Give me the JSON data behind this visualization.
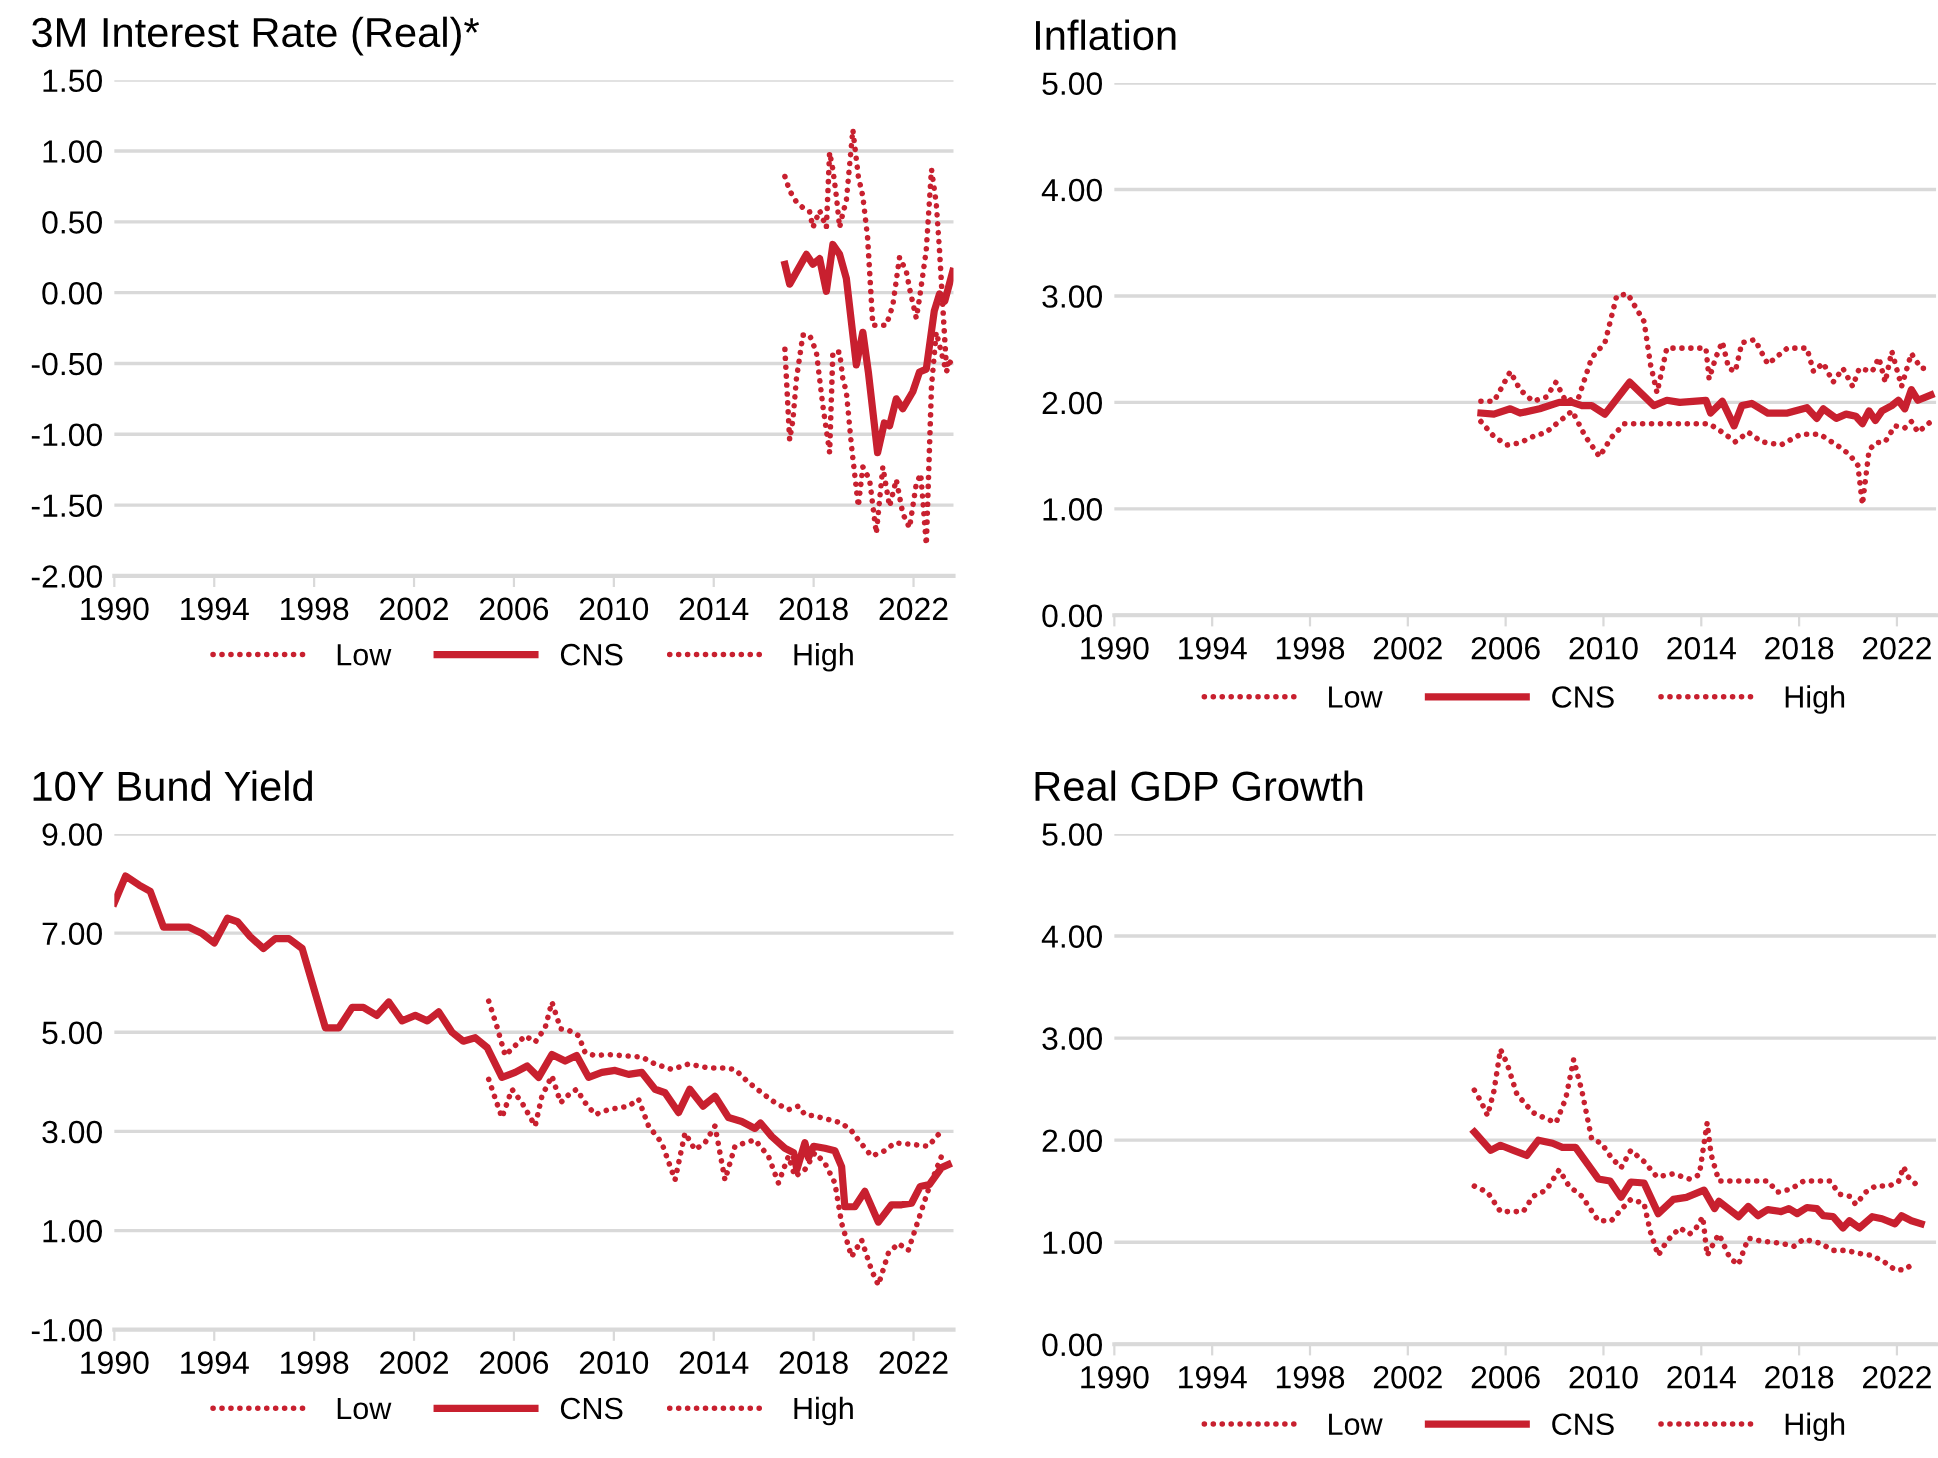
{
  "chart_data": [
    {
      "type": "line",
      "title": "3M Interest Rate (Real)*",
      "xlim": [
        1990,
        2023.6
      ],
      "xticks": [
        1990,
        1994,
        1998,
        2002,
        2006,
        2010,
        2014,
        2018,
        2022
      ],
      "ylim": [
        -2,
        1.5
      ],
      "yticks": [
        {
          "value": -2,
          "label": "-2.00"
        },
        {
          "value": -1.5,
          "label": "-1.50"
        },
        {
          "value": -1,
          "label": "-1.00"
        },
        {
          "value": -0.5,
          "label": "-0.50"
        },
        {
          "value": 0,
          "label": "0.00"
        },
        {
          "value": 0.5,
          "label": "0.50"
        },
        {
          "value": 1,
          "label": "1.00"
        },
        {
          "value": 1.5,
          "label": "1.50"
        }
      ],
      "grid": "y",
      "legend": "bottom",
      "marker": "none",
      "series": [
        {
          "name": "Low",
          "color": "#c8202f",
          "line_style": "dotted",
          "x": [
            2016.85,
            2017.04,
            2017.17,
            2017.31,
            2017.57,
            2017.84,
            2018.11,
            2018.37,
            2018.64,
            2018.77,
            2019.04,
            2019.17,
            2019.31,
            2019.52,
            2019.79,
            2019.97,
            2020.24,
            2020.51,
            2020.77,
            2021.04,
            2021.31,
            2021.57,
            2021.84,
            2022.11,
            2022.29,
            2022.51,
            2022.72,
            2022.91,
            2023.04,
            2023.31,
            2023.52
          ],
          "values": [
            -0.4,
            -1.04,
            -0.9,
            -0.61,
            -0.3,
            -0.3,
            -0.42,
            -0.8,
            -1.13,
            -0.42,
            -0.42,
            -0.61,
            -0.7,
            -1.09,
            -1.51,
            -1.23,
            -1.32,
            -1.7,
            -1.23,
            -1.51,
            -1.32,
            -1.56,
            -1.66,
            -1.35,
            -1.28,
            -1.78,
            -0.66,
            -0.28,
            -0.37,
            -0.56,
            -0.47
          ]
        },
        {
          "name": "CNS",
          "color": "#c8202f",
          "line_style": "solid",
          "x": [
            2016.85,
            2017.04,
            2017.71,
            2017.97,
            2018.24,
            2018.51,
            2018.77,
            2019.04,
            2019.31,
            2019.71,
            2019.97,
            2020.19,
            2020.56,
            2020.83,
            2021.04,
            2021.31,
            2021.57,
            2021.97,
            2022.24,
            2022.51,
            2022.83,
            2023.04,
            2023.25,
            2023.57
          ],
          "values": [
            0.2,
            0.06,
            0.27,
            0.2,
            0.24,
            0.01,
            0.34,
            0.27,
            0.1,
            -0.51,
            -0.28,
            -0.56,
            -1.13,
            -0.92,
            -0.94,
            -0.75,
            -0.82,
            -0.7,
            -0.56,
            -0.54,
            -0.13,
            -0.01,
            -0.06,
            0.15
          ]
        },
        {
          "name": "High",
          "color": "#c8202f",
          "line_style": "dotted",
          "x": [
            2016.85,
            2017.04,
            2017.31,
            2017.57,
            2017.84,
            2017.97,
            2018.24,
            2018.51,
            2018.64,
            2018.77,
            2018.91,
            2019.04,
            2019.17,
            2019.31,
            2019.57,
            2019.79,
            2019.97,
            2020.16,
            2020.37,
            2020.64,
            2020.91,
            2021.17,
            2021.44,
            2021.71,
            2021.84,
            2022.11,
            2022.24,
            2022.51,
            2022.72,
            2022.91,
            2023.04,
            2023.31,
            2023.52
          ],
          "values": [
            0.82,
            0.72,
            0.64,
            0.6,
            0.57,
            0.46,
            0.58,
            0.46,
            0.99,
            0.87,
            0.68,
            0.46,
            0.56,
            0.65,
            1.15,
            0.82,
            0.68,
            0.39,
            -0.23,
            -0.23,
            -0.23,
            -0.09,
            0.25,
            0.15,
            0.03,
            -0.18,
            -0.04,
            0.3,
            0.87,
            0.63,
            0.3,
            -0.51,
            -0.49
          ]
        }
      ]
    },
    {
      "type": "line",
      "title": "Inflation",
      "xlim": [
        1990,
        2023.6
      ],
      "xticks": [
        1990,
        1994,
        1998,
        2002,
        2006,
        2010,
        2014,
        2018,
        2022
      ],
      "ylim": [
        0,
        5
      ],
      "yticks": [
        {
          "value": 0,
          "label": "0.00"
        },
        {
          "value": 1,
          "label": "1.00"
        },
        {
          "value": 2,
          "label": "2.00"
        },
        {
          "value": 3,
          "label": "3.00"
        },
        {
          "value": 4,
          "label": "4.00"
        },
        {
          "value": 5,
          "label": "5.00"
        }
      ],
      "grid": "y",
      "legend": "bottom",
      "marker": "none",
      "series": [
        {
          "name": "Low",
          "color": "#c8202f",
          "line_style": "dotted",
          "x": [
            2004.99,
            2005.52,
            2006.06,
            2006.59,
            2007.12,
            2007.66,
            2008.19,
            2008.72,
            2009.26,
            2009.84,
            2010.32,
            2010.86,
            2011.92,
            2013.52,
            2014.32,
            2014.86,
            2015.39,
            2015.92,
            2016.46,
            2017.26,
            2018.06,
            2018.86,
            2019.66,
            2020.06,
            2020.4,
            2020.59,
            2020.86,
            2021.12,
            2021.52,
            2021.92,
            2022.32,
            2022.59,
            2022.86,
            2023.39
          ],
          "values": [
            1.82,
            1.68,
            1.6,
            1.62,
            1.68,
            1.72,
            1.82,
            1.92,
            1.68,
            1.49,
            1.67,
            1.8,
            1.8,
            1.8,
            1.8,
            1.72,
            1.63,
            1.72,
            1.63,
            1.6,
            1.7,
            1.7,
            1.58,
            1.51,
            1.41,
            1.04,
            1.55,
            1.62,
            1.63,
            1.78,
            1.76,
            1.82,
            1.72,
            1.82
          ]
        },
        {
          "name": "CNS",
          "color": "#c8202f",
          "line_style": "solid",
          "x": [
            2004.99,
            2005.52,
            2006.19,
            2006.59,
            2007.39,
            2008.19,
            2008.72,
            2009.12,
            2009.52,
            2010.06,
            2011.07,
            2012.06,
            2012.59,
            2013.12,
            2014.19,
            2014.38,
            2014.86,
            2015.34,
            2015.66,
            2016.06,
            2016.72,
            2017.52,
            2018.32,
            2018.72,
            2018.99,
            2019.52,
            2019.92,
            2020.32,
            2020.59,
            2020.86,
            2021.12,
            2021.39,
            2021.79,
            2022.06,
            2022.32,
            2022.59,
            2022.86,
            2023.39
          ],
          "values": [
            1.9,
            1.89,
            1.94,
            1.9,
            1.94,
            2.0,
            2.0,
            1.97,
            1.97,
            1.89,
            2.19,
            1.97,
            2.02,
            2.0,
            2.02,
            1.9,
            2.01,
            1.78,
            1.97,
            1.99,
            1.9,
            1.9,
            1.95,
            1.85,
            1.94,
            1.85,
            1.89,
            1.87,
            1.8,
            1.92,
            1.83,
            1.92,
            1.97,
            2.02,
            1.94,
            2.12,
            2.02,
            2.07
          ]
        },
        {
          "name": "High",
          "color": "#c8202f",
          "line_style": "dotted",
          "x": [
            2004.99,
            2005.52,
            2005.79,
            2006.19,
            2006.59,
            2007.12,
            2007.66,
            2008.06,
            2008.46,
            2008.99,
            2009.52,
            2010.06,
            2010.54,
            2010.99,
            2011.66,
            2011.92,
            2012.19,
            2012.59,
            2013.52,
            2014.19,
            2014.32,
            2014.59,
            2014.86,
            2015.12,
            2015.39,
            2015.66,
            2016.19,
            2016.72,
            2017.52,
            2018.32,
            2018.59,
            2018.99,
            2019.39,
            2019.79,
            2020.19,
            2020.46,
            2020.99,
            2021.26,
            2021.52,
            2021.79,
            2022.19,
            2022.59,
            2022.99,
            2023.39
          ],
          "values": [
            2.01,
            2.01,
            2.12,
            2.29,
            2.12,
            2.01,
            2.05,
            2.19,
            2.01,
            2.05,
            2.42,
            2.56,
            3.0,
            3.02,
            2.76,
            2.36,
            2.09,
            2.51,
            2.51,
            2.51,
            2.22,
            2.42,
            2.57,
            2.32,
            2.29,
            2.56,
            2.59,
            2.36,
            2.51,
            2.51,
            2.29,
            2.37,
            2.19,
            2.32,
            2.15,
            2.32,
            2.29,
            2.42,
            2.19,
            2.48,
            2.15,
            2.46,
            2.32,
            2.32
          ]
        }
      ]
    },
    {
      "type": "line",
      "title": "10Y Bund Yield",
      "xlim": [
        1990,
        2023.6
      ],
      "xticks": [
        1990,
        1994,
        1998,
        2002,
        2006,
        2010,
        2014,
        2018,
        2022
      ],
      "ylim": [
        -1,
        9
      ],
      "yticks": [
        {
          "value": -1,
          "label": "-1.00"
        },
        {
          "value": 1,
          "label": "1.00"
        },
        {
          "value": 3,
          "label": "3.00"
        },
        {
          "value": 5,
          "label": "5.00"
        },
        {
          "value": 7,
          "label": "7.00"
        },
        {
          "value": 9,
          "label": "9.00"
        }
      ],
      "grid": "y",
      "legend": "bottom",
      "marker": "none",
      "series": [
        {
          "name": "Low",
          "color": "#c8202f",
          "line_style": "dotted",
          "x": [
            2004.99,
            2005.31,
            2005.52,
            2005.92,
            2006.32,
            2006.85,
            2007.12,
            2007.52,
            2007.87,
            2008.19,
            2008.51,
            2008.85,
            2009.25,
            2009.79,
            2010.59,
            2010.99,
            2011.39,
            2011.92,
            2012.45,
            2012.85,
            2013.25,
            2013.65,
            2014.05,
            2014.45,
            2014.85,
            2015.25,
            2015.65,
            2016.19,
            2016.59,
            2016.99,
            2017.25,
            2017.65,
            2018.05,
            2018.45,
            2018.85,
            2019.12,
            2019.52,
            2019.92,
            2020.32,
            2020.59,
            2020.99,
            2021.39,
            2021.79,
            2022.19,
            2022.59,
            2023.12
          ],
          "values": [
            4.05,
            3.58,
            3.28,
            3.85,
            3.58,
            3.11,
            3.71,
            4.12,
            3.58,
            3.74,
            3.85,
            3.58,
            3.34,
            3.44,
            3.51,
            3.65,
            3.11,
            2.77,
            2.02,
            2.97,
            2.63,
            2.77,
            3.11,
            2.02,
            2.7,
            2.77,
            2.83,
            2.5,
            1.96,
            2.5,
            2.09,
            2.23,
            2.57,
            2.36,
            1.96,
            1.15,
            0.47,
            0.81,
            0.2,
            -0.1,
            0.54,
            0.74,
            0.6,
            1.21,
            1.82,
            2.5
          ]
        },
        {
          "name": "CNS",
          "color": "#c8202f",
          "line_style": "solid",
          "x": [
            1990.0,
            1990.45,
            1990.99,
            1991.44,
            1991.97,
            1992.99,
            1993.52,
            1994.0,
            1994.53,
            1994.93,
            1995.44,
            1995.97,
            1996.45,
            1996.99,
            1997.52,
            1998.45,
            1998.99,
            1999.52,
            1999.97,
            2000.51,
            2000.99,
            2001.52,
            2002.05,
            2002.53,
            2002.99,
            2003.52,
            2003.97,
            2004.45,
            2004.93,
            2005.52,
            2006.05,
            2006.53,
            2006.99,
            2007.52,
            2008.05,
            2008.51,
            2008.99,
            2009.52,
            2010.05,
            2010.59,
            2011.12,
            2011.65,
            2012.05,
            2012.59,
            2013.04,
            2013.57,
            2014.05,
            2014.59,
            2015.12,
            2015.65,
            2015.87,
            2016.32,
            2016.85,
            2017.2,
            2017.33,
            2017.65,
            2017.79,
            2018.0,
            2018.45,
            2018.85,
            2019.12,
            2019.25,
            2019.65,
            2020.05,
            2020.59,
            2021.12,
            2021.52,
            2021.92,
            2022.27,
            2022.64,
            2023.12,
            2023.39
          ],
          "values": [
            7.61,
            8.15,
            7.97,
            7.84,
            7.12,
            7.12,
            6.99,
            6.8,
            7.3,
            7.23,
            6.93,
            6.69,
            6.89,
            6.89,
            6.69,
            5.09,
            5.09,
            5.5,
            5.5,
            5.34,
            5.61,
            5.23,
            5.34,
            5.23,
            5.41,
            5.0,
            4.82,
            4.89,
            4.69,
            4.09,
            4.19,
            4.32,
            4.09,
            4.55,
            4.42,
            4.53,
            4.09,
            4.19,
            4.23,
            4.15,
            4.19,
            3.85,
            3.78,
            3.38,
            3.85,
            3.51,
            3.71,
            3.28,
            3.2,
            3.06,
            3.17,
            2.9,
            2.66,
            2.57,
            2.23,
            2.77,
            2.47,
            2.7,
            2.66,
            2.61,
            2.29,
            1.48,
            1.48,
            1.79,
            1.17,
            1.52,
            1.52,
            1.55,
            1.89,
            1.93,
            2.27,
            2.33
          ]
        },
        {
          "name": "High",
          "color": "#c8202f",
          "line_style": "dotted",
          "x": [
            2004.99,
            2005.31,
            2005.65,
            2006.05,
            2006.45,
            2006.85,
            2007.25,
            2007.52,
            2007.87,
            2008.19,
            2008.59,
            2008.85,
            2009.25,
            2009.79,
            2010.32,
            2011.12,
            2011.65,
            2012.32,
            2012.99,
            2013.79,
            2014.45,
            2014.85,
            2015.39,
            2015.92,
            2016.45,
            2016.99,
            2017.39,
            2017.65,
            2018.05,
            2018.59,
            2019.12,
            2019.52,
            2019.79,
            2020.32,
            2020.85,
            2021.25,
            2021.92,
            2022.59,
            2023.12
          ],
          "values": [
            5.63,
            5.13,
            4.53,
            4.73,
            4.93,
            4.8,
            5.09,
            5.61,
            5.07,
            5.04,
            4.93,
            4.59,
            4.53,
            4.55,
            4.53,
            4.5,
            4.36,
            4.25,
            4.36,
            4.28,
            4.28,
            4.25,
            3.99,
            3.78,
            3.58,
            3.44,
            3.51,
            3.34,
            3.31,
            3.24,
            3.17,
            3.01,
            2.83,
            2.5,
            2.61,
            2.77,
            2.74,
            2.7,
            3.01
          ]
        }
      ]
    },
    {
      "type": "line",
      "title": "Real GDP Growth",
      "xlim": [
        1990,
        2023.6
      ],
      "xticks": [
        1990,
        1994,
        1998,
        2002,
        2006,
        2010,
        2014,
        2018,
        2022
      ],
      "ylim": [
        0,
        5
      ],
      "yticks": [
        {
          "value": 0,
          "label": "0.00"
        },
        {
          "value": 1,
          "label": "1.00"
        },
        {
          "value": 2,
          "label": "2.00"
        },
        {
          "value": 3,
          "label": "3.00"
        },
        {
          "value": 4,
          "label": "4.00"
        },
        {
          "value": 5,
          "label": "5.00"
        }
      ],
      "grid": "y",
      "legend": "bottom",
      "marker": "none",
      "series": [
        {
          "name": "Low",
          "color": "#c8202f",
          "line_style": "dotted",
          "x": [
            2004.72,
            2005.26,
            2005.79,
            2006.32,
            2006.72,
            2007.12,
            2007.66,
            2008.19,
            2008.59,
            2009.12,
            2009.79,
            2010.32,
            2010.72,
            2011.12,
            2011.66,
            2011.92,
            2012.24,
            2012.59,
            2013.12,
            2013.52,
            2013.79,
            2014.06,
            2014.24,
            2014.46,
            2014.72,
            2015.18,
            2015.52,
            2015.92,
            2016.46,
            2017.26,
            2017.79,
            2018.19,
            2018.86,
            2019.39,
            2019.92,
            2020.46,
            2020.99,
            2021.52,
            2021.92,
            2022.32,
            2022.72
          ],
          "values": [
            1.55,
            1.49,
            1.3,
            1.3,
            1.3,
            1.45,
            1.51,
            1.71,
            1.55,
            1.45,
            1.21,
            1.21,
            1.32,
            1.42,
            1.38,
            1.1,
            0.87,
            1.01,
            1.14,
            1.08,
            1.14,
            1.25,
            0.87,
            0.97,
            1.08,
            0.84,
            0.78,
            1.04,
            1.01,
            0.99,
            0.96,
            1.03,
            0.99,
            0.92,
            0.92,
            0.89,
            0.87,
            0.8,
            0.73,
            0.73,
            0.8
          ]
        },
        {
          "name": "CNS",
          "color": "#c8202f",
          "line_style": "solid",
          "x": [
            2004.72,
            2005.39,
            2005.79,
            2006.32,
            2006.86,
            2007.34,
            2007.92,
            2008.32,
            2008.86,
            2009.79,
            2010.27,
            2010.72,
            2011.12,
            2011.66,
            2012.24,
            2012.86,
            2013.39,
            2014.11,
            2014.54,
            2014.72,
            2015.52,
            2015.92,
            2016.32,
            2016.72,
            2017.26,
            2017.58,
            2017.92,
            2018.32,
            2018.72,
            2018.99,
            2019.39,
            2019.79,
            2020.06,
            2020.46,
            2020.99,
            2021.39,
            2021.92,
            2022.19,
            2022.59,
            2022.99
          ],
          "values": [
            2.08,
            1.9,
            1.95,
            1.9,
            1.85,
            2.0,
            1.97,
            1.93,
            1.93,
            1.62,
            1.6,
            1.44,
            1.59,
            1.58,
            1.28,
            1.42,
            1.44,
            1.51,
            1.33,
            1.4,
            1.25,
            1.35,
            1.26,
            1.32,
            1.3,
            1.33,
            1.28,
            1.34,
            1.33,
            1.26,
            1.25,
            1.14,
            1.21,
            1.14,
            1.25,
            1.23,
            1.18,
            1.26,
            1.21,
            1.18
          ]
        },
        {
          "name": "High",
          "color": "#c8202f",
          "line_style": "dotted",
          "x": [
            2004.72,
            2004.99,
            2005.26,
            2005.52,
            2005.79,
            2006.06,
            2006.46,
            2007.12,
            2007.66,
            2008.06,
            2008.46,
            2008.78,
            2009.12,
            2009.52,
            2009.92,
            2010.32,
            2010.72,
            2011.12,
            2011.66,
            2012.19,
            2012.86,
            2013.52,
            2013.92,
            2014.24,
            2014.4,
            2014.72,
            2015.39,
            2016.06,
            2016.72,
            2017.12,
            2017.66,
            2018.19,
            2018.86,
            2019.26,
            2019.66,
            2020.06,
            2020.32,
            2020.72,
            2021.12,
            2021.66,
            2022.06,
            2022.27,
            2022.46,
            2022.86
          ],
          "values": [
            2.49,
            2.38,
            2.24,
            2.48,
            2.89,
            2.75,
            2.45,
            2.27,
            2.21,
            2.17,
            2.41,
            2.79,
            2.48,
            2.01,
            1.97,
            1.83,
            1.73,
            1.9,
            1.79,
            1.64,
            1.67,
            1.62,
            1.66,
            2.17,
            1.86,
            1.6,
            1.6,
            1.6,
            1.6,
            1.49,
            1.52,
            1.6,
            1.6,
            1.6,
            1.47,
            1.45,
            1.37,
            1.49,
            1.55,
            1.55,
            1.59,
            1.74,
            1.64,
            1.55
          ]
        }
      ]
    }
  ]
}
